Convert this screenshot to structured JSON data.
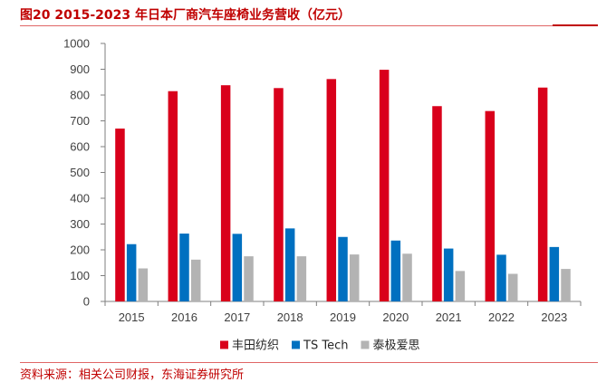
{
  "title": "图20  2015-2023 年日本厂商汽车座椅业务营收（亿元）",
  "source": "资料来源：相关公司财报，东海证券研究所",
  "chart_data": {
    "type": "bar",
    "title": "图20  2015-2023 年日本厂商汽车座椅业务营收（亿元）",
    "xlabel": "",
    "ylabel": "",
    "categories": [
      "2015",
      "2016",
      "2017",
      "2018",
      "2019",
      "2020",
      "2021",
      "2022",
      "2023"
    ],
    "ylim": [
      0,
      1000
    ],
    "yticks": [
      0,
      100,
      200,
      300,
      400,
      500,
      600,
      700,
      800,
      900,
      1000
    ],
    "ytick_labels": [
      "0",
      "100",
      "200",
      "300",
      "400",
      "500",
      "600",
      "700",
      "800",
      "900",
      "1000"
    ],
    "grid": false,
    "legend_position": "bottom",
    "series": [
      {
        "name": "丰田纺织",
        "color": "#d9001b",
        "values": [
          670,
          815,
          838,
          827,
          862,
          898,
          757,
          738,
          829
        ]
      },
      {
        "name": "TS Tech",
        "color": "#0070c0",
        "values": [
          222,
          263,
          262,
          283,
          250,
          236,
          205,
          181,
          211
        ]
      },
      {
        "name": "泰极爱思",
        "color": "#b3b3b3",
        "values": [
          128,
          162,
          175,
          175,
          182,
          185,
          118,
          107,
          126
        ]
      }
    ]
  }
}
